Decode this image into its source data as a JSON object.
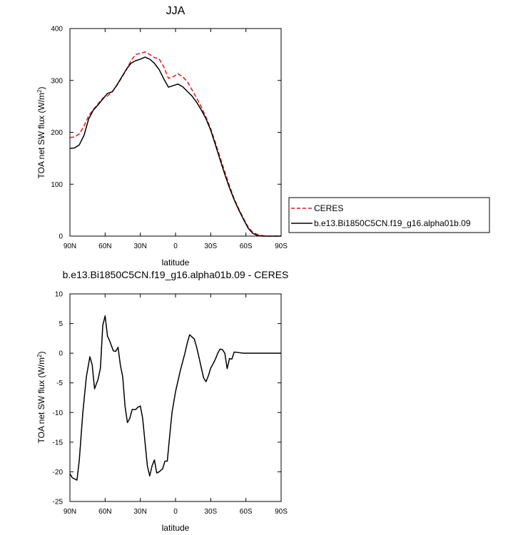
{
  "chart_data": [
    {
      "type": "line",
      "title": "JJA",
      "xlabel": "latitude",
      "ylabel": "TOA net SW flux (W/m²)",
      "ylabel_main": "TOA net SW flux (W/m",
      "ylabel_sup": "2",
      "ylabel_end": ")",
      "xlim": [
        90,
        -90
      ],
      "ylim": [
        0,
        400
      ],
      "x_ticks": [
        {
          "v": 90,
          "label": "90N"
        },
        {
          "v": 60,
          "label": "60N"
        },
        {
          "v": 30,
          "label": "30N"
        },
        {
          "v": 0,
          "label": "0"
        },
        {
          "v": -30,
          "label": "30S"
        },
        {
          "v": -60,
          "label": "60S"
        },
        {
          "v": -90,
          "label": "90S"
        }
      ],
      "y_ticks": [
        {
          "v": 0,
          "label": "0"
        },
        {
          "v": 100,
          "label": "100"
        },
        {
          "v": 200,
          "label": "200"
        },
        {
          "v": 300,
          "label": "300"
        },
        {
          "v": 400,
          "label": "400"
        }
      ],
      "legend_position": "right",
      "series": [
        {
          "name": "CERES",
          "color": "#e31a1c",
          "dash": "dashed",
          "points": [
            [
              90,
              190
            ],
            [
              86,
              191
            ],
            [
              82,
              197
            ],
            [
              78,
              212
            ],
            [
              74,
              232
            ],
            [
              70,
              244
            ],
            [
              66,
              255
            ],
            [
              62,
              266
            ],
            [
              58,
              270
            ],
            [
              54,
              278
            ],
            [
              50,
              290
            ],
            [
              46,
              305
            ],
            [
              42,
              320
            ],
            [
              38,
              338
            ],
            [
              34,
              350
            ],
            [
              30,
              352
            ],
            [
              26,
              355
            ],
            [
              22,
              350
            ],
            [
              18,
              344
            ],
            [
              14,
              342
            ],
            [
              10,
              326
            ],
            [
              6,
              304
            ],
            [
              2,
              307
            ],
            [
              -2,
              313
            ],
            [
              -6,
              307
            ],
            [
              -10,
              298
            ],
            [
              -14,
              282
            ],
            [
              -18,
              266
            ],
            [
              -22,
              249
            ],
            [
              -26,
              229
            ],
            [
              -30,
              207
            ],
            [
              -34,
              180
            ],
            [
              -38,
              152
            ],
            [
              -42,
              124
            ],
            [
              -46,
              97
            ],
            [
              -50,
              72
            ],
            [
              -54,
              52
            ],
            [
              -58,
              34
            ],
            [
              -62,
              17
            ],
            [
              -66,
              7
            ],
            [
              -70,
              3
            ],
            [
              -74,
              1
            ],
            [
              -78,
              0
            ],
            [
              -82,
              0
            ],
            [
              -86,
              0
            ],
            [
              -90,
              0
            ]
          ]
        },
        {
          "name": "b.e13.Bi1850C5CN.f19_g16.alpha01b.09",
          "color": "#000000",
          "dash": "solid",
          "points": [
            [
              90,
              169
            ],
            [
              86,
              170
            ],
            [
              82,
              176
            ],
            [
              78,
              194
            ],
            [
              74,
              226
            ],
            [
              70,
              243
            ],
            [
              66,
              253
            ],
            [
              62,
              264
            ],
            [
              58,
              275
            ],
            [
              54,
              278
            ],
            [
              50,
              291
            ],
            [
              46,
              306
            ],
            [
              42,
              321
            ],
            [
              38,
              333
            ],
            [
              34,
              338
            ],
            [
              30,
              341
            ],
            [
              26,
              345
            ],
            [
              22,
              341
            ],
            [
              18,
              333
            ],
            [
              14,
              321
            ],
            [
              10,
              303
            ],
            [
              6,
              287
            ],
            [
              2,
              290
            ],
            [
              -2,
              293
            ],
            [
              -6,
              288
            ],
            [
              -10,
              279
            ],
            [
              -14,
              270
            ],
            [
              -18,
              258
            ],
            [
              -22,
              243
            ],
            [
              -26,
              226
            ],
            [
              -30,
              204
            ],
            [
              -34,
              176
            ],
            [
              -38,
              147
            ],
            [
              -42,
              119
            ],
            [
              -46,
              93
            ],
            [
              -50,
              70
            ],
            [
              -54,
              50
            ],
            [
              -58,
              32
            ],
            [
              -62,
              15
            ],
            [
              -66,
              5
            ],
            [
              -70,
              1
            ],
            [
              -74,
              0
            ],
            [
              -78,
              0
            ],
            [
              -82,
              0
            ],
            [
              -86,
              0
            ],
            [
              -90,
              0
            ]
          ]
        }
      ]
    },
    {
      "type": "line",
      "title": "b.e13.Bi1850C5CN.f19_g16.alpha01b.09 - CERES",
      "xlabel": "latitude",
      "ylabel": "TOA net SW flux (W/m²)",
      "ylabel_main": "TOA net SW flux (W/m",
      "ylabel_sup": "2",
      "ylabel_end": ")",
      "xlim": [
        90,
        -90
      ],
      "ylim": [
        -25,
        10
      ],
      "x_ticks": [
        {
          "v": 90,
          "label": "90N"
        },
        {
          "v": 60,
          "label": "60N"
        },
        {
          "v": 30,
          "label": "30N"
        },
        {
          "v": 0,
          "label": "0"
        },
        {
          "v": -30,
          "label": "30S"
        },
        {
          "v": -60,
          "label": "60S"
        },
        {
          "v": -90,
          "label": "90S"
        }
      ],
      "y_ticks": [
        {
          "v": -25,
          "label": "-25"
        },
        {
          "v": -20,
          "label": "-20"
        },
        {
          "v": -15,
          "label": "-15"
        },
        {
          "v": -10,
          "label": "-10"
        },
        {
          "v": -5,
          "label": "-5"
        },
        {
          "v": 0,
          "label": "0"
        },
        {
          "v": 5,
          "label": "5"
        },
        {
          "v": 10,
          "label": "10"
        }
      ],
      "series": [
        {
          "color": "#000000",
          "dash": "solid",
          "points": [
            [
              90,
              -20.3
            ],
            [
              88,
              -21
            ],
            [
              84,
              -21.4
            ],
            [
              82,
              -18
            ],
            [
              79,
              -10
            ],
            [
              76,
              -4
            ],
            [
              73,
              -0.6
            ],
            [
              71,
              -2
            ],
            [
              69,
              -6
            ],
            [
              66,
              -4.4
            ],
            [
              64,
              -2.5
            ],
            [
              62,
              4.7
            ],
            [
              60,
              6.3
            ],
            [
              58,
              2.9
            ],
            [
              56,
              2
            ],
            [
              53,
              0.4
            ],
            [
              51,
              0.3
            ],
            [
              49,
              1
            ],
            [
              47,
              -2
            ],
            [
              45,
              -4
            ],
            [
              43,
              -9
            ],
            [
              41,
              -11.7
            ],
            [
              39,
              -11
            ],
            [
              37,
              -9.5
            ],
            [
              34,
              -9.5
            ],
            [
              32,
              -9.1
            ],
            [
              30,
              -8.9
            ],
            [
              28,
              -11
            ],
            [
              26,
              -15
            ],
            [
              24,
              -19
            ],
            [
              22,
              -20.7
            ],
            [
              20,
              -19
            ],
            [
              18,
              -18
            ],
            [
              16,
              -20.2
            ],
            [
              14,
              -20
            ],
            [
              11,
              -19.5
            ],
            [
              9,
              -18.2
            ],
            [
              7,
              -18.2
            ],
            [
              5,
              -14
            ],
            [
              3,
              -10
            ],
            [
              0,
              -6.5
            ],
            [
              -4,
              -3
            ],
            [
              -8,
              0
            ],
            [
              -10,
              1.7
            ],
            [
              -12,
              3.1
            ],
            [
              -16,
              2.4
            ],
            [
              -18,
              1
            ],
            [
              -20,
              -0.7
            ],
            [
              -22,
              -2.5
            ],
            [
              -24,
              -4.2
            ],
            [
              -26,
              -4.8
            ],
            [
              -28,
              -3.8
            ],
            [
              -30,
              -2.5
            ],
            [
              -32,
              -1.8
            ],
            [
              -34,
              -1
            ],
            [
              -36,
              0
            ],
            [
              -38,
              0.7
            ],
            [
              -40,
              0.6
            ],
            [
              -42,
              0
            ],
            [
              -44,
              -2.6
            ],
            [
              -46,
              -0.9
            ],
            [
              -48,
              -1
            ],
            [
              -50,
              0.2
            ],
            [
              -54,
              0.1
            ],
            [
              -58,
              0
            ],
            [
              -62,
              0
            ],
            [
              -66,
              0
            ],
            [
              -70,
              0
            ],
            [
              -74,
              0
            ],
            [
              -78,
              0
            ],
            [
              -82,
              0
            ],
            [
              -86,
              0
            ],
            [
              -90,
              0
            ]
          ]
        }
      ]
    }
  ]
}
